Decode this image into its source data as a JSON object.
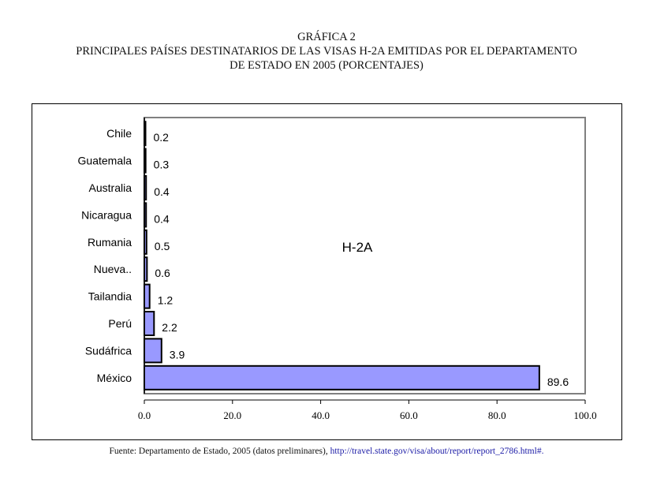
{
  "title": {
    "line1": "GRÁFICA 2",
    "line2": "PRINCIPALES PAÍSES DESTINATARIOS DE LAS VISAS H-2A EMITIDAS POR EL DEPARTAMENTO",
    "line3": "DE ESTADO EN 2005 (PORCENTAJES)"
  },
  "source": {
    "text": "Fuente: Departamento de Estado, 2005 (datos preliminares), ",
    "link": "http://travel.state.gov/visa/about/report/report_2786.html#."
  },
  "chart_data": {
    "type": "bar",
    "orientation": "horizontal",
    "series_label": "H-2A",
    "categories": [
      "Chile",
      "Guatemala",
      "Australia",
      "Nicaragua",
      "Rumania",
      "Nueva..",
      "Tailandia",
      "Perú",
      "Sudáfrica",
      "México"
    ],
    "values": [
      0.2,
      0.3,
      0.4,
      0.4,
      0.5,
      0.6,
      1.2,
      2.2,
      3.9,
      89.6
    ],
    "value_labels": [
      "0.2",
      "0.3",
      "0.4",
      "0.4",
      "0.5",
      "0.6",
      "1.2",
      "2.2",
      "3.9",
      "89.6"
    ],
    "xlim": [
      0,
      100
    ],
    "xticks": [
      0,
      20,
      40,
      60,
      80,
      100
    ],
    "xtick_labels": [
      "0.0",
      "20.0",
      "40.0",
      "60.0",
      "80.0",
      "100.0"
    ],
    "bar_color": "#9999ff",
    "bar_edge_color": "#000000",
    "plot_border_color": "#808080",
    "grid": false,
    "legend": "none"
  }
}
